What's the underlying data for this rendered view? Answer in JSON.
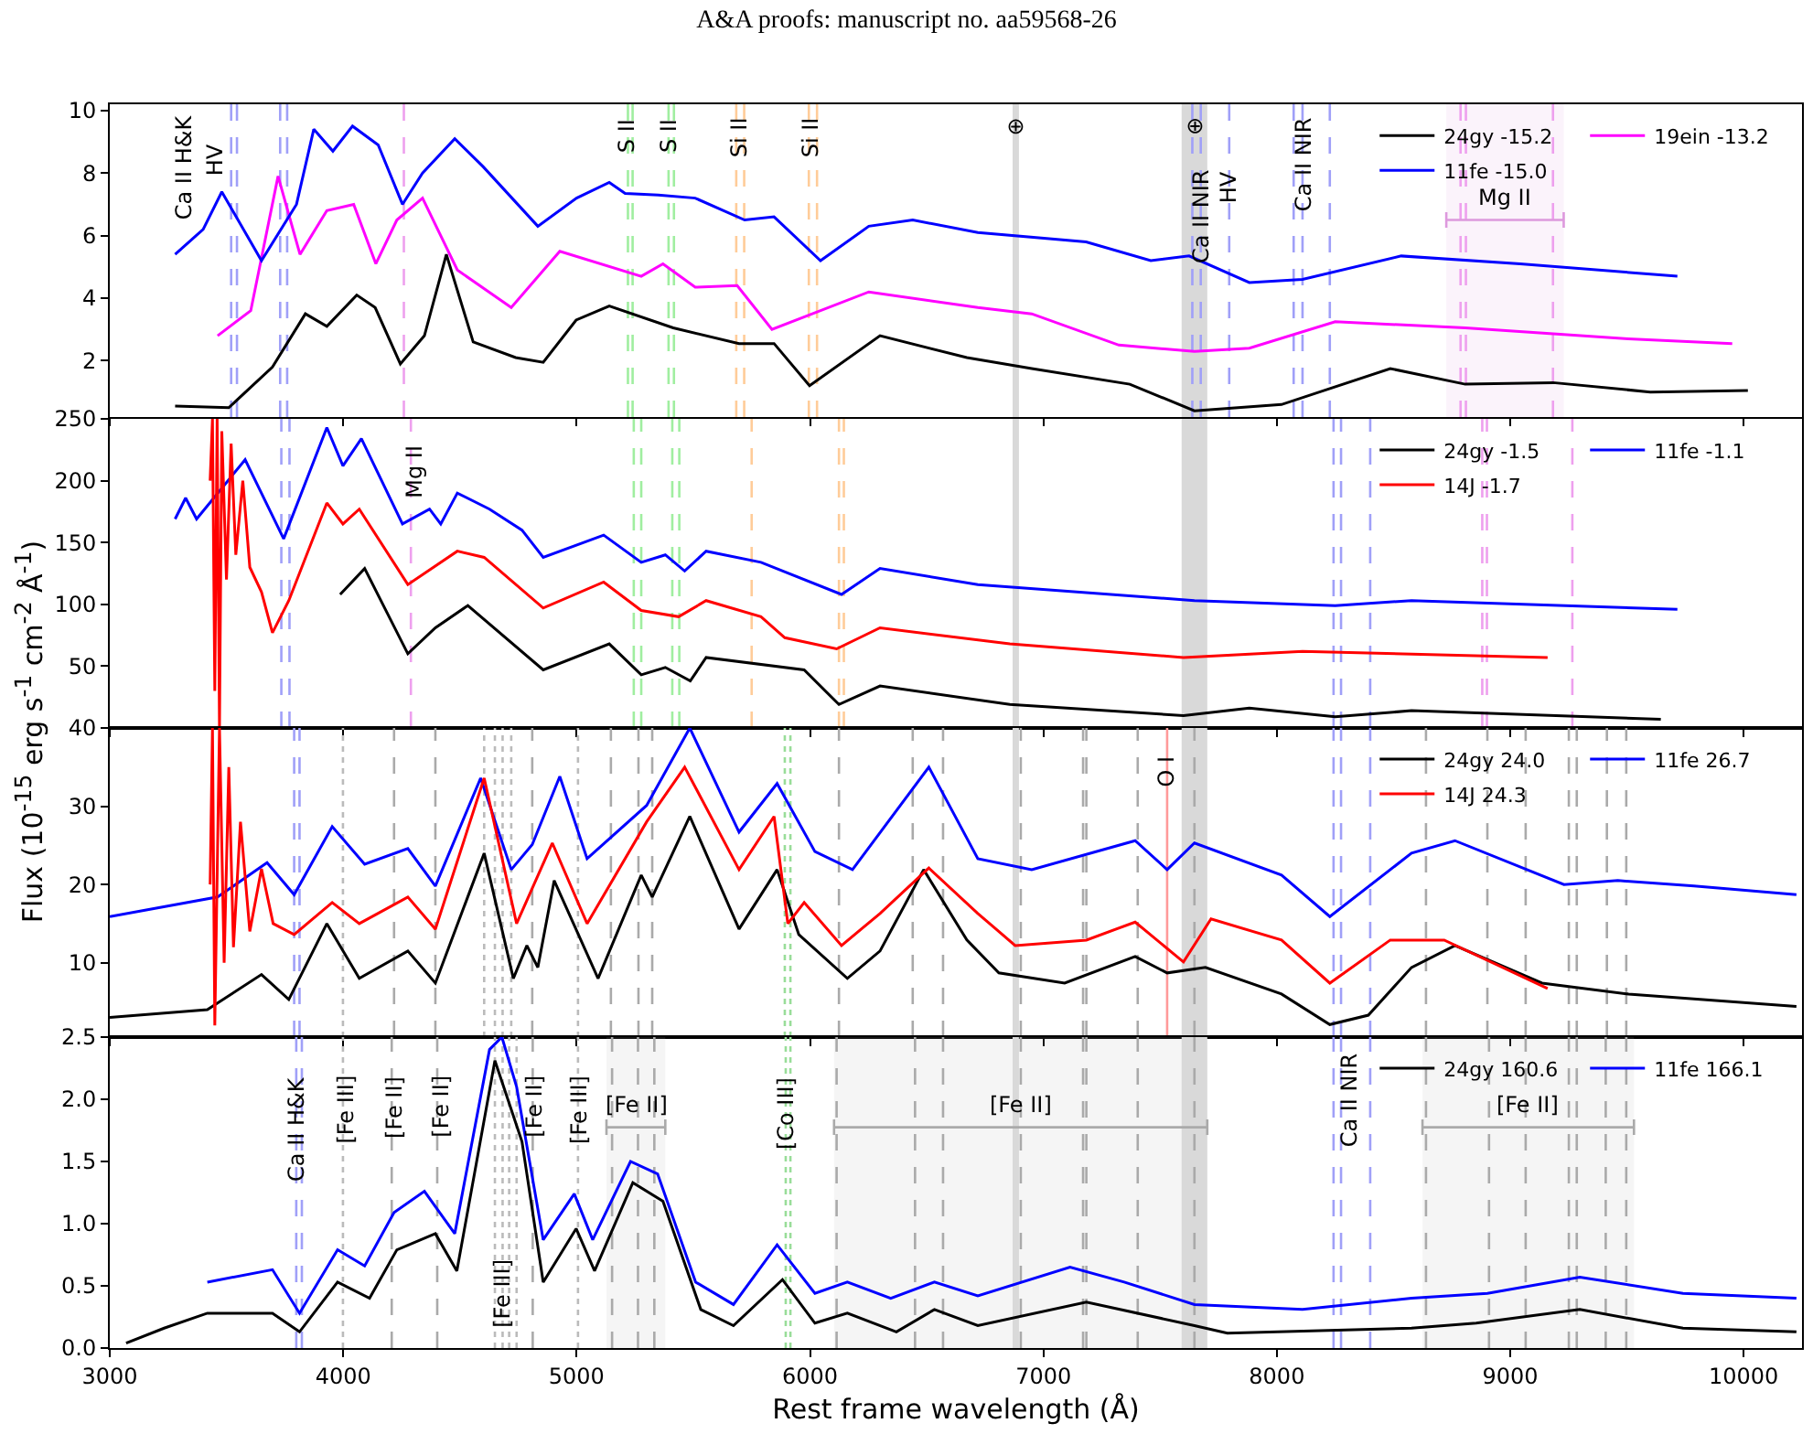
{
  "chart_data": [
    {
      "type": "line",
      "title": "A&A proofs: manuscript no. aa59568-26",
      "ylabel": "Flux (10$^{-15}$ erg s$^{-1}$ cm$^{-2}$ Å$^{-1}$)",
      "xlim": [
        3000,
        10250
      ],
      "xticks": [
        3000,
        4000,
        5000,
        6000,
        7000,
        8000,
        9000,
        10000
      ],
      "ylim": [
        0.2,
        10.2
      ],
      "yticks": [
        2,
        4,
        6,
        8,
        10
      ],
      "tick_labels": "y",
      "legend": "top right",
      "grid": false,
      "series": [
        {
          "name": "24gy -15.2",
          "color": "#000000",
          "x": [
            3280,
            3510,
            3697,
            3838,
            3930,
            4058,
            4137,
            4245,
            4348,
            4442,
            4557,
            4739,
            4857,
            4998,
            5140,
            5414,
            5696,
            5846,
            5998,
            6300,
            6672,
            6950,
            7370,
            7647,
            8020,
            8486,
            8807,
            9183,
            9600,
            10018
          ],
          "values": [
            0.55,
            0.5,
            1.8,
            3.5,
            3.1,
            4.1,
            3.7,
            1.9,
            2.8,
            5.4,
            2.6,
            2.1,
            1.95,
            3.3,
            3.75,
            3.05,
            2.55,
            2.55,
            1.2,
            2.8,
            2.1,
            1.75,
            1.25,
            0.4,
            0.6,
            1.75,
            1.25,
            1.3,
            1.0,
            1.05
          ]
        },
        {
          "name": "19ein -13.2",
          "color": "#ff00ff",
          "x": [
            3462,
            3604,
            3721,
            3815,
            3930,
            4045,
            4140,
            4230,
            4340,
            4489,
            4720,
            4928,
            5277,
            5370,
            5508,
            5688,
            5837,
            6252,
            6719,
            6950,
            7323,
            7647,
            7882,
            8250,
            8807,
            9505,
            9951
          ],
          "values": [
            2.8,
            3.6,
            7.9,
            5.4,
            6.8,
            7.0,
            5.1,
            6.5,
            7.2,
            4.9,
            3.7,
            5.5,
            4.7,
            5.1,
            4.35,
            4.4,
            3.0,
            4.2,
            3.7,
            3.5,
            2.5,
            2.3,
            2.4,
            3.25,
            3.05,
            2.7,
            2.55
          ]
        },
        {
          "name": "11fe -15.0",
          "color": "#0000ff",
          "x": [
            3280,
            3400,
            3480,
            3650,
            3800,
            3874,
            3956,
            4040,
            4150,
            4254,
            4340,
            4478,
            4600,
            4834,
            5000,
            5140,
            5208,
            5350,
            5508,
            5720,
            5846,
            6045,
            6252,
            6440,
            6719,
            7183,
            7460,
            7624,
            7882,
            8110,
            8533,
            9042,
            9716
          ],
          "values": [
            5.4,
            6.2,
            7.4,
            5.2,
            7.0,
            9.4,
            8.7,
            9.5,
            8.9,
            7.0,
            8.0,
            9.1,
            8.2,
            6.3,
            7.2,
            7.7,
            7.35,
            7.3,
            7.2,
            6.5,
            6.6,
            5.2,
            6.3,
            6.5,
            6.1,
            5.8,
            5.2,
            5.35,
            4.5,
            4.6,
            5.35,
            5.1,
            4.7
          ]
        }
      ],
      "ref_lines": [
        {
          "axis": "x",
          "value": 3520,
          "color": "#a0a0f8",
          "line_style": "dashed"
        },
        {
          "axis": "x",
          "value": 3545,
          "color": "#a0a0f8",
          "line_style": "dashed"
        },
        {
          "axis": "x",
          "value": 3730,
          "color": "#a0a0f8",
          "line_style": "dashed"
        },
        {
          "axis": "x",
          "value": 3760,
          "color": "#a0a0f8",
          "line_style": "dashed"
        },
        {
          "axis": "x",
          "value": 4260,
          "color": "#eea0ee",
          "line_style": "dashed"
        },
        {
          "axis": "x",
          "value": 5220,
          "color": "#a0eea0",
          "line_style": "dashed"
        },
        {
          "axis": "x",
          "value": 5240,
          "color": "#a0eea0",
          "line_style": "dashed"
        },
        {
          "axis": "x",
          "value": 5394,
          "color": "#a0eea0",
          "line_style": "dashed"
        },
        {
          "axis": "x",
          "value": 5417,
          "color": "#a0eea0",
          "line_style": "dashed"
        },
        {
          "axis": "x",
          "value": 5684,
          "color": "#ffcc99",
          "line_style": "dashed"
        },
        {
          "axis": "x",
          "value": 5718,
          "color": "#ffcc99",
          "line_style": "dashed"
        },
        {
          "axis": "x",
          "value": 5995,
          "color": "#ffcc99",
          "line_style": "dashed"
        },
        {
          "axis": "x",
          "value": 6030,
          "color": "#ffcc99",
          "line_style": "dashed"
        },
        {
          "axis": "x",
          "value": 7638,
          "color": "#a0a0f8",
          "line_style": "dashed"
        },
        {
          "axis": "x",
          "value": 7674,
          "color": "#a0a0f8",
          "line_style": "dashed"
        },
        {
          "axis": "x",
          "value": 7796,
          "color": "#a0a0f8",
          "line_style": "dashed"
        },
        {
          "axis": "x",
          "value": 8072,
          "color": "#a0a0f8",
          "line_style": "dashed"
        },
        {
          "axis": "x",
          "value": 8110,
          "color": "#a0a0f8",
          "line_style": "dashed"
        },
        {
          "axis": "x",
          "value": 8227,
          "color": "#a0a0f8",
          "line_style": "dashed"
        },
        {
          "axis": "x",
          "value": 8787,
          "color": "#eea0ee",
          "line_style": "dashed"
        },
        {
          "axis": "x",
          "value": 8810,
          "color": "#eea0ee",
          "line_style": "dashed"
        },
        {
          "axis": "x",
          "value": 9183,
          "color": "#eea0ee",
          "line_style": "dashed"
        }
      ],
      "bands": [
        {
          "axis": "x",
          "from": 6868,
          "to": 6895,
          "color": "#d9d9d9"
        },
        {
          "axis": "x",
          "from": 7592,
          "to": 7702,
          "color": "#d9d9d9"
        },
        {
          "axis": "x",
          "from": 8726,
          "to": 9229,
          "label": "Mg II",
          "color": "#dd99dd"
        }
      ],
      "annotations": [
        "Ca II H&K",
        "HV",
        {
          "text": "S II",
          "x": 5210,
          "y": 9.9
        },
        {
          "text": "S II",
          "x": 5390,
          "y": 9.9
        },
        {
          "text": "Si II",
          "x": 5696,
          "y": 9.9
        },
        {
          "text": "Si II",
          "x": 6002,
          "y": 9.9
        },
        {
          "text": "⊕",
          "x": 6881,
          "y": 9.9
        },
        {
          "text": "⊕",
          "x": 7647,
          "y": 9.9
        },
        {
          "text": "Ca II NIR",
          "x": 7674,
          "y": 8.2
        },
        {
          "text": "HV",
          "x": 7796,
          "y": 8.2
        },
        {
          "text": "Ca II NIR",
          "x": 8110,
          "y": 9.9
        }
      ]
    },
    {
      "type": "line",
      "xlim": [
        3000,
        10250
      ],
      "xticks": [
        3000,
        4000,
        5000,
        6000,
        7000,
        8000,
        9000,
        10000
      ],
      "ylim": [
        0,
        250
      ],
      "yticks": [
        50,
        100,
        150,
        200,
        250
      ],
      "tick_labels": "y",
      "legend": "top right",
      "grid": false,
      "series": [
        {
          "name": "24gy -1.5",
          "color": "#000000",
          "x": [
            3987,
            4092,
            4277,
            4395,
            4534,
            4857,
            5140,
            5277,
            5380,
            5487,
            5555,
            5975,
            6124,
            6300,
            6856,
            7600,
            7882,
            8250,
            8577,
            9645
          ],
          "values": [
            108,
            129,
            60,
            81,
            99,
            47,
            68,
            43,
            49,
            38,
            57,
            47,
            19,
            34,
            19,
            10,
            16,
            9,
            14,
            7
          ]
        },
        {
          "name": "11fe -1.1",
          "color": "#0000ff",
          "x": [
            3280,
            3325,
            3372,
            3580,
            3745,
            3930,
            3999,
            4078,
            4254,
            4370,
            4418,
            4489,
            4627,
            4766,
            4857,
            5116,
            5277,
            5380,
            5463,
            5555,
            5790,
            6135,
            6300,
            6719,
            7647,
            8250,
            8577,
            9716
          ],
          "values": [
            169,
            186,
            169,
            217,
            153,
            243,
            212,
            234,
            165,
            177,
            165,
            190,
            177,
            160,
            138,
            156,
            134,
            140,
            127,
            143,
            134,
            108,
            129,
            116,
            103,
            99,
            103,
            96
          ]
        },
        {
          "name": "14J -1.7",
          "color": "#ff0000",
          "x": [
            3430,
            3440,
            3450,
            3460,
            3470,
            3480,
            3500,
            3520,
            3540,
            3570,
            3600,
            3650,
            3697,
            3767,
            3930,
            3999,
            4069,
            4277,
            4489,
            4604,
            4857,
            5116,
            5277,
            5437,
            5555,
            5790,
            5892,
            6114,
            6300,
            6856,
            7600,
            8110,
            9160
          ],
          "values": [
            200,
            250,
            30,
            250,
            0,
            240,
            120,
            230,
            140,
            200,
            130,
            110,
            77,
            103,
            182,
            165,
            177,
            116,
            143,
            138,
            97,
            118,
            95,
            90,
            103,
            90,
            73,
            64,
            81,
            68,
            57,
            62,
            57
          ]
        }
      ],
      "ref_lines": [
        {
          "axis": "x",
          "value": 3735,
          "color": "#a0a0f8",
          "line_style": "dashed"
        },
        {
          "axis": "x",
          "value": 3770,
          "color": "#a0a0f8",
          "line_style": "dashed"
        },
        {
          "axis": "x",
          "value": 4290,
          "color": "#eea0ee",
          "line_style": "dashed"
        },
        {
          "axis": "x",
          "value": 5245,
          "color": "#a0eea0",
          "line_style": "dashed"
        },
        {
          "axis": "x",
          "value": 5277,
          "color": "#a0eea0",
          "line_style": "dashed"
        },
        {
          "axis": "x",
          "value": 5410,
          "color": "#a0eea0",
          "line_style": "dashed"
        },
        {
          "axis": "x",
          "value": 5440,
          "color": "#a0eea0",
          "line_style": "dashed"
        },
        {
          "axis": "x",
          "value": 5750,
          "color": "#ffcc99",
          "line_style": "dashed"
        },
        {
          "axis": "x",
          "value": 6124,
          "color": "#ffcc99",
          "line_style": "dashed"
        },
        {
          "axis": "x",
          "value": 6145,
          "color": "#ffcc99",
          "line_style": "dashed"
        },
        {
          "axis": "x",
          "value": 8243,
          "color": "#a0a0f8",
          "line_style": "dashed"
        },
        {
          "axis": "x",
          "value": 8275,
          "color": "#a0a0f8",
          "line_style": "dashed"
        },
        {
          "axis": "x",
          "value": 8400,
          "color": "#a0a0f8",
          "line_style": "dashed"
        },
        {
          "axis": "x",
          "value": 8880,
          "color": "#eea0ee",
          "line_style": "dashed"
        },
        {
          "axis": "x",
          "value": 8900,
          "color": "#eea0ee",
          "line_style": "dashed"
        },
        {
          "axis": "x",
          "value": 9266,
          "color": "#eea0ee",
          "line_style": "dashed"
        }
      ],
      "bands": [
        {
          "axis": "x",
          "from": 6868,
          "to": 6895,
          "color": "#d9d9d9"
        },
        {
          "axis": "x",
          "from": 7592,
          "to": 7702,
          "color": "#d9d9d9"
        }
      ],
      "annotations": [
        {
          "text": "Mg II",
          "x": 4309,
          "y": 231
        }
      ]
    },
    {
      "type": "line",
      "xlim": [
        3000,
        10250
      ],
      "xticks": [
        3000,
        4000,
        5000,
        6000,
        7000,
        8000,
        9000,
        10000
      ],
      "ylim": [
        0.5,
        40
      ],
      "yticks": [
        10,
        20,
        30,
        40
      ],
      "tick_labels": "y",
      "legend": "top right",
      "grid": false,
      "series": [
        {
          "name": "24gy 24.0",
          "color": "#000000",
          "x": [
            3000,
            3418,
            3650,
            3767,
            3930,
            4069,
            4277,
            4395,
            4604,
            4729,
            4787,
            4834,
            4904,
            5092,
            5277,
            5324,
            5485,
            5696,
            5859,
            5952,
            6160,
            6300,
            6487,
            6672,
            6809,
            7091,
            7393,
            7530,
            7694,
            8020,
            8227,
            8392,
            8577,
            8763,
            9136,
            9507,
            10226
          ],
          "values": [
            3.0,
            4.0,
            8.5,
            5.3,
            15.0,
            8.0,
            11.5,
            7.4,
            24.0,
            8.0,
            12.2,
            9.4,
            20.5,
            8.0,
            21.2,
            18.4,
            28.7,
            14.3,
            21.9,
            13.6,
            8.0,
            11.5,
            21.9,
            12.9,
            8.7,
            7.4,
            10.8,
            8.7,
            9.4,
            6.0,
            2.1,
            3.3,
            9.4,
            12.2,
            7.4,
            6.0,
            4.4
          ]
        },
        {
          "name": "11fe 26.7",
          "color": "#0000ff",
          "x": [
            3000,
            3462,
            3674,
            3790,
            3953,
            4092,
            4277,
            4395,
            4589,
            4720,
            4810,
            4928,
            5045,
            5300,
            5485,
            5696,
            5859,
            6021,
            6182,
            6509,
            6719,
            6950,
            7393,
            7530,
            7647,
            8020,
            8227,
            8577,
            8763,
            9230,
            9461,
            9787,
            10226
          ],
          "values": [
            15.9,
            18.4,
            22.8,
            18.7,
            27.4,
            22.6,
            24.6,
            19.8,
            33.6,
            21.9,
            25.1,
            33.8,
            23.3,
            30.1,
            40,
            26.7,
            32.9,
            24.2,
            21.9,
            35.0,
            23.3,
            21.9,
            25.6,
            21.9,
            25.3,
            21.2,
            15.9,
            24.0,
            25.6,
            20.0,
            20.5,
            19.8,
            18.7
          ]
        },
        {
          "name": "14J 24.3",
          "color": "#ff0000",
          "x": [
            3430,
            3440,
            3450,
            3470,
            3490,
            3510,
            3530,
            3560,
            3600,
            3650,
            3700,
            3790,
            3953,
            4069,
            4277,
            4395,
            4604,
            4743,
            4896,
            5045,
            5300,
            5463,
            5696,
            5846,
            5905,
            5975,
            6135,
            6300,
            6509,
            6719,
            6879,
            7184,
            7393,
            7600,
            7718,
            8020,
            8227,
            8486,
            8717,
            9160
          ],
          "values": [
            20,
            40,
            2,
            40,
            10,
            35,
            12,
            28,
            14,
            22,
            15,
            13.6,
            17.7,
            15.0,
            18.4,
            14.3,
            33.6,
            15.0,
            25.3,
            15.0,
            28.0,
            35.0,
            21.9,
            28.7,
            15.0,
            17.7,
            12.2,
            16.3,
            22.1,
            16.3,
            12.2,
            12.9,
            15.2,
            10.1,
            15.6,
            12.9,
            7.4,
            12.9,
            12.9,
            6.7
          ]
        }
      ],
      "ref_lines": [
        {
          "axis": "x",
          "value": 3790,
          "color": "#a0a0f8",
          "line_style": "dashed"
        },
        {
          "axis": "x",
          "value": 3813,
          "color": "#a0a0f8",
          "line_style": "dashed"
        },
        {
          "axis": "x",
          "value": 3999,
          "color": "#bbbbbb",
          "line_style": "dotted"
        },
        {
          "axis": "x",
          "value": 4218,
          "color": "#aaaaaa",
          "line_style": "dashed"
        },
        {
          "axis": "x",
          "value": 4395,
          "color": "#aaaaaa",
          "line_style": "dashed"
        },
        {
          "axis": "x",
          "value": 4604,
          "color": "#bbbbbb",
          "line_style": "dotted"
        },
        {
          "axis": "x",
          "value": 4650,
          "color": "#bbbbbb",
          "line_style": "dotted"
        },
        {
          "axis": "x",
          "value": 4683,
          "color": "#bbbbbb",
          "line_style": "dotted"
        },
        {
          "axis": "x",
          "value": 4720,
          "color": "#bbbbbb",
          "line_style": "dotted"
        },
        {
          "axis": "x",
          "value": 4810,
          "color": "#aaaaaa",
          "line_style": "dashed"
        },
        {
          "axis": "x",
          "value": 5006,
          "color": "#bbbbbb",
          "line_style": "dotted"
        },
        {
          "axis": "x",
          "value": 5147,
          "color": "#aaaaaa",
          "line_style": "dashed"
        },
        {
          "axis": "x",
          "value": 5265,
          "color": "#aaaaaa",
          "line_style": "dashed"
        },
        {
          "axis": "x",
          "value": 5324,
          "color": "#aaaaaa",
          "line_style": "dashed"
        },
        {
          "axis": "x",
          "value": 5892,
          "color": "#99dd99",
          "line_style": "dotted"
        },
        {
          "axis": "x",
          "value": 5916,
          "color": "#99dd99",
          "line_style": "dotted"
        },
        {
          "axis": "x",
          "value": 6124,
          "color": "#aaaaaa",
          "line_style": "dashed"
        },
        {
          "axis": "x",
          "value": 6440,
          "color": "#aaaaaa",
          "line_style": "dashed"
        },
        {
          "axis": "x",
          "value": 6570,
          "color": "#aaaaaa",
          "line_style": "dashed"
        },
        {
          "axis": "x",
          "value": 6903,
          "color": "#aaaaaa",
          "line_style": "dashed"
        },
        {
          "axis": "x",
          "value": 7170,
          "color": "#aaaaaa",
          "line_style": "dashed"
        },
        {
          "axis": "x",
          "value": 7184,
          "color": "#aaaaaa",
          "line_style": "dashed"
        },
        {
          "axis": "x",
          "value": 7404,
          "color": "#aaaaaa",
          "line_style": "dashed"
        },
        {
          "axis": "x",
          "value": 7530,
          "color": "#ff9999",
          "line_style": "solid"
        },
        {
          "axis": "x",
          "value": 7647,
          "color": "#aaaaaa",
          "line_style": "dashed"
        },
        {
          "axis": "x",
          "value": 8243,
          "color": "#a0a0f8",
          "line_style": "dashed"
        },
        {
          "axis": "x",
          "value": 8275,
          "color": "#a0a0f8",
          "line_style": "dashed"
        },
        {
          "axis": "x",
          "value": 8400,
          "color": "#a0a0f8",
          "line_style": "dashed"
        },
        {
          "axis": "x",
          "value": 8639,
          "color": "#aaaaaa",
          "line_style": "dashed"
        },
        {
          "axis": "x",
          "value": 8902,
          "color": "#aaaaaa",
          "line_style": "dashed"
        },
        {
          "axis": "x",
          "value": 9066,
          "color": "#aaaaaa",
          "line_style": "dashed"
        },
        {
          "axis": "x",
          "value": 9251,
          "color": "#aaaaaa",
          "line_style": "dashed"
        },
        {
          "axis": "x",
          "value": 9285,
          "color": "#aaaaaa",
          "line_style": "dashed"
        },
        {
          "axis": "x",
          "value": 9414,
          "color": "#aaaaaa",
          "line_style": "dashed"
        },
        {
          "axis": "x",
          "value": 9497,
          "color": "#aaaaaa",
          "line_style": "dashed"
        }
      ],
      "bands": [
        {
          "axis": "x",
          "from": 6868,
          "to": 6895,
          "color": "#d9d9d9"
        },
        {
          "axis": "x",
          "from": 7592,
          "to": 7702,
          "color": "#d9d9d9"
        }
      ],
      "annotations": [
        {
          "text": "O I",
          "x": 7530,
          "y": 37
        }
      ]
    },
    {
      "type": "line",
      "xlabel": "Rest frame wavelength (Å)",
      "xlim": [
        3000,
        10250
      ],
      "xticks": [
        3000,
        4000,
        5000,
        6000,
        7000,
        8000,
        9000,
        10000
      ],
      "ylim": [
        0,
        2.5
      ],
      "yticks": [
        {
          "value": 0,
          "label": "0.0"
        },
        {
          "value": 0.5,
          "label": "0.5"
        },
        {
          "value": 1,
          "label": "1.0"
        },
        {
          "value": 1.5,
          "label": "1.5"
        },
        {
          "value": 2,
          "label": "2.0"
        },
        {
          "value": 2.5,
          "label": "2.5"
        }
      ],
      "legend": "top right",
      "grid": false,
      "series": [
        {
          "name": "24gy 160.6",
          "color": "#000000",
          "x": [
            3070,
            3233,
            3418,
            3697,
            3813,
            3976,
            4113,
            4230,
            4395,
            4487,
            4650,
            4766,
            4857,
            4998,
            5077,
            5241,
            5370,
            5532,
            5672,
            5882,
            6021,
            6160,
            6370,
            6533,
            6719,
            7184,
            7647,
            7788,
            8577,
            8854,
            9298,
            9740,
            10226
          ],
          "values": [
            0.04,
            0.16,
            0.28,
            0.28,
            0.13,
            0.53,
            0.4,
            0.79,
            0.92,
            0.62,
            2.31,
            1.66,
            0.53,
            0.96,
            0.62,
            1.33,
            1.18,
            0.31,
            0.18,
            0.55,
            0.2,
            0.28,
            0.13,
            0.31,
            0.18,
            0.37,
            0.18,
            0.12,
            0.16,
            0.2,
            0.31,
            0.16,
            0.13
          ]
        },
        {
          "name": "11fe 166.1",
          "color": "#0000ff",
          "x": [
            3418,
            3697,
            3813,
            3976,
            4092,
            4218,
            4348,
            4478,
            4627,
            4680,
            4743,
            4857,
            4990,
            5069,
            5231,
            5347,
            5510,
            5672,
            5859,
            6021,
            6160,
            6346,
            6533,
            6719,
            7114,
            7346,
            7647,
            8110,
            8577,
            8902,
            9298,
            9740,
            10226
          ],
          "values": [
            0.53,
            0.63,
            0.28,
            0.79,
            0.66,
            1.09,
            1.26,
            0.92,
            2.4,
            2.5,
            2.1,
            0.87,
            1.24,
            0.87,
            1.5,
            1.4,
            0.53,
            0.35,
            0.83,
            0.44,
            0.53,
            0.4,
            0.53,
            0.42,
            0.65,
            0.53,
            0.35,
            0.31,
            0.4,
            0.44,
            0.57,
            0.44,
            0.4
          ]
        }
      ],
      "ref_lines": [
        {
          "axis": "x",
          "value": 3799,
          "color": "#a0a0f8",
          "line_style": "dashed"
        },
        {
          "axis": "x",
          "value": 3823,
          "color": "#a0a0f8",
          "line_style": "dashed"
        },
        {
          "axis": "x",
          "value": 3999,
          "color": "#bbbbbb",
          "line_style": "dotted"
        },
        {
          "axis": "x",
          "value": 4208,
          "color": "#aaaaaa",
          "line_style": "dashed"
        },
        {
          "axis": "x",
          "value": 4403,
          "color": "#aaaaaa",
          "line_style": "dashed"
        },
        {
          "axis": "x",
          "value": 4650,
          "color": "#bbbbbb",
          "line_style": "dotted"
        },
        {
          "axis": "x",
          "value": 4683,
          "color": "#bbbbbb",
          "line_style": "dotted"
        },
        {
          "axis": "x",
          "value": 4711,
          "color": "#bbbbbb",
          "line_style": "dotted"
        },
        {
          "axis": "x",
          "value": 4743,
          "color": "#bbbbbb",
          "line_style": "dotted"
        },
        {
          "axis": "x",
          "value": 4812,
          "color": "#aaaaaa",
          "line_style": "dashed"
        },
        {
          "axis": "x",
          "value": 5006,
          "color": "#bbbbbb",
          "line_style": "dotted"
        },
        {
          "axis": "x",
          "value": 5152,
          "color": "#aaaaaa",
          "line_style": "dashed"
        },
        {
          "axis": "x",
          "value": 5263,
          "color": "#aaaaaa",
          "line_style": "dashed"
        },
        {
          "axis": "x",
          "value": 5333,
          "color": "#aaaaaa",
          "line_style": "dashed"
        },
        {
          "axis": "x",
          "value": 5896,
          "color": "#99dd99",
          "line_style": "dotted"
        },
        {
          "axis": "x",
          "value": 5916,
          "color": "#99dd99",
          "line_style": "dotted"
        },
        {
          "axis": "x",
          "value": 6114,
          "color": "#aaaaaa",
          "line_style": "dashed"
        },
        {
          "axis": "x",
          "value": 6450,
          "color": "#aaaaaa",
          "line_style": "dashed"
        },
        {
          "axis": "x",
          "value": 6570,
          "color": "#aaaaaa",
          "line_style": "dashed"
        },
        {
          "axis": "x",
          "value": 6903,
          "color": "#aaaaaa",
          "line_style": "dashed"
        },
        {
          "axis": "x",
          "value": 7170,
          "color": "#aaaaaa",
          "line_style": "dashed"
        },
        {
          "axis": "x",
          "value": 7184,
          "color": "#aaaaaa",
          "line_style": "dashed"
        },
        {
          "axis": "x",
          "value": 7404,
          "color": "#aaaaaa",
          "line_style": "dashed"
        },
        {
          "axis": "x",
          "value": 7647,
          "color": "#aaaaaa",
          "line_style": "dashed"
        },
        {
          "axis": "x",
          "value": 8243,
          "color": "#a0a0f8",
          "line_style": "dashed"
        },
        {
          "axis": "x",
          "value": 8275,
          "color": "#a0a0f8",
          "line_style": "dashed"
        },
        {
          "axis": "x",
          "value": 8400,
          "color": "#a0a0f8",
          "line_style": "dashed"
        },
        {
          "axis": "x",
          "value": 8639,
          "color": "#aaaaaa",
          "line_style": "dashed"
        },
        {
          "axis": "x",
          "value": 8909,
          "color": "#aaaaaa",
          "line_style": "dashed"
        },
        {
          "axis": "x",
          "value": 9066,
          "color": "#aaaaaa",
          "line_style": "dashed"
        },
        {
          "axis": "x",
          "value": 9251,
          "color": "#aaaaaa",
          "line_style": "dashed"
        },
        {
          "axis": "x",
          "value": 9285,
          "color": "#aaaaaa",
          "line_style": "dashed"
        },
        {
          "axis": "x",
          "value": 9409,
          "color": "#aaaaaa",
          "line_style": "dashed"
        },
        {
          "axis": "x",
          "value": 9497,
          "color": "#aaaaaa",
          "line_style": "dashed"
        }
      ],
      "bands": [
        {
          "axis": "x",
          "from": 6868,
          "to": 6895,
          "color": "#d9d9d9"
        },
        {
          "axis": "x",
          "from": 7592,
          "to": 7702,
          "color": "#d9d9d9"
        },
        {
          "axis": "x",
          "from": 5128,
          "to": 5380,
          "label": "[Fe II]",
          "color": "#aaaaaa"
        },
        {
          "axis": "x",
          "from": 6103,
          "to": 7702,
          "label": "[Fe II]",
          "color": "#aaaaaa"
        },
        {
          "axis": "x",
          "from": 8624,
          "to": 9530,
          "label": "[Fe II]",
          "color": "#aaaaaa"
        }
      ],
      "annotations": [
        {
          "text": "Ca II H&K",
          "x": 3799,
          "y": 2.22
        },
        {
          "text": "[Fe III]",
          "x": 4009,
          "y": 2.22
        },
        {
          "text": "[Fe II]",
          "x": 4218,
          "y": 2.22
        },
        {
          "text": "[Fe II]",
          "x": 4417,
          "y": 2.22
        },
        {
          "text": "[Fe III]",
          "x": 4683,
          "y": 0.74
        },
        {
          "text": "[Fe II]",
          "x": 4817,
          "y": 2.22
        },
        {
          "text": "[Fe III]",
          "x": 5006,
          "y": 2.22
        },
        {
          "text": "[Co III]",
          "x": 5896,
          "y": 2.22
        },
        {
          "text": "Ca II NIR",
          "x": 8313,
          "y": 2.4
        }
      ]
    }
  ]
}
